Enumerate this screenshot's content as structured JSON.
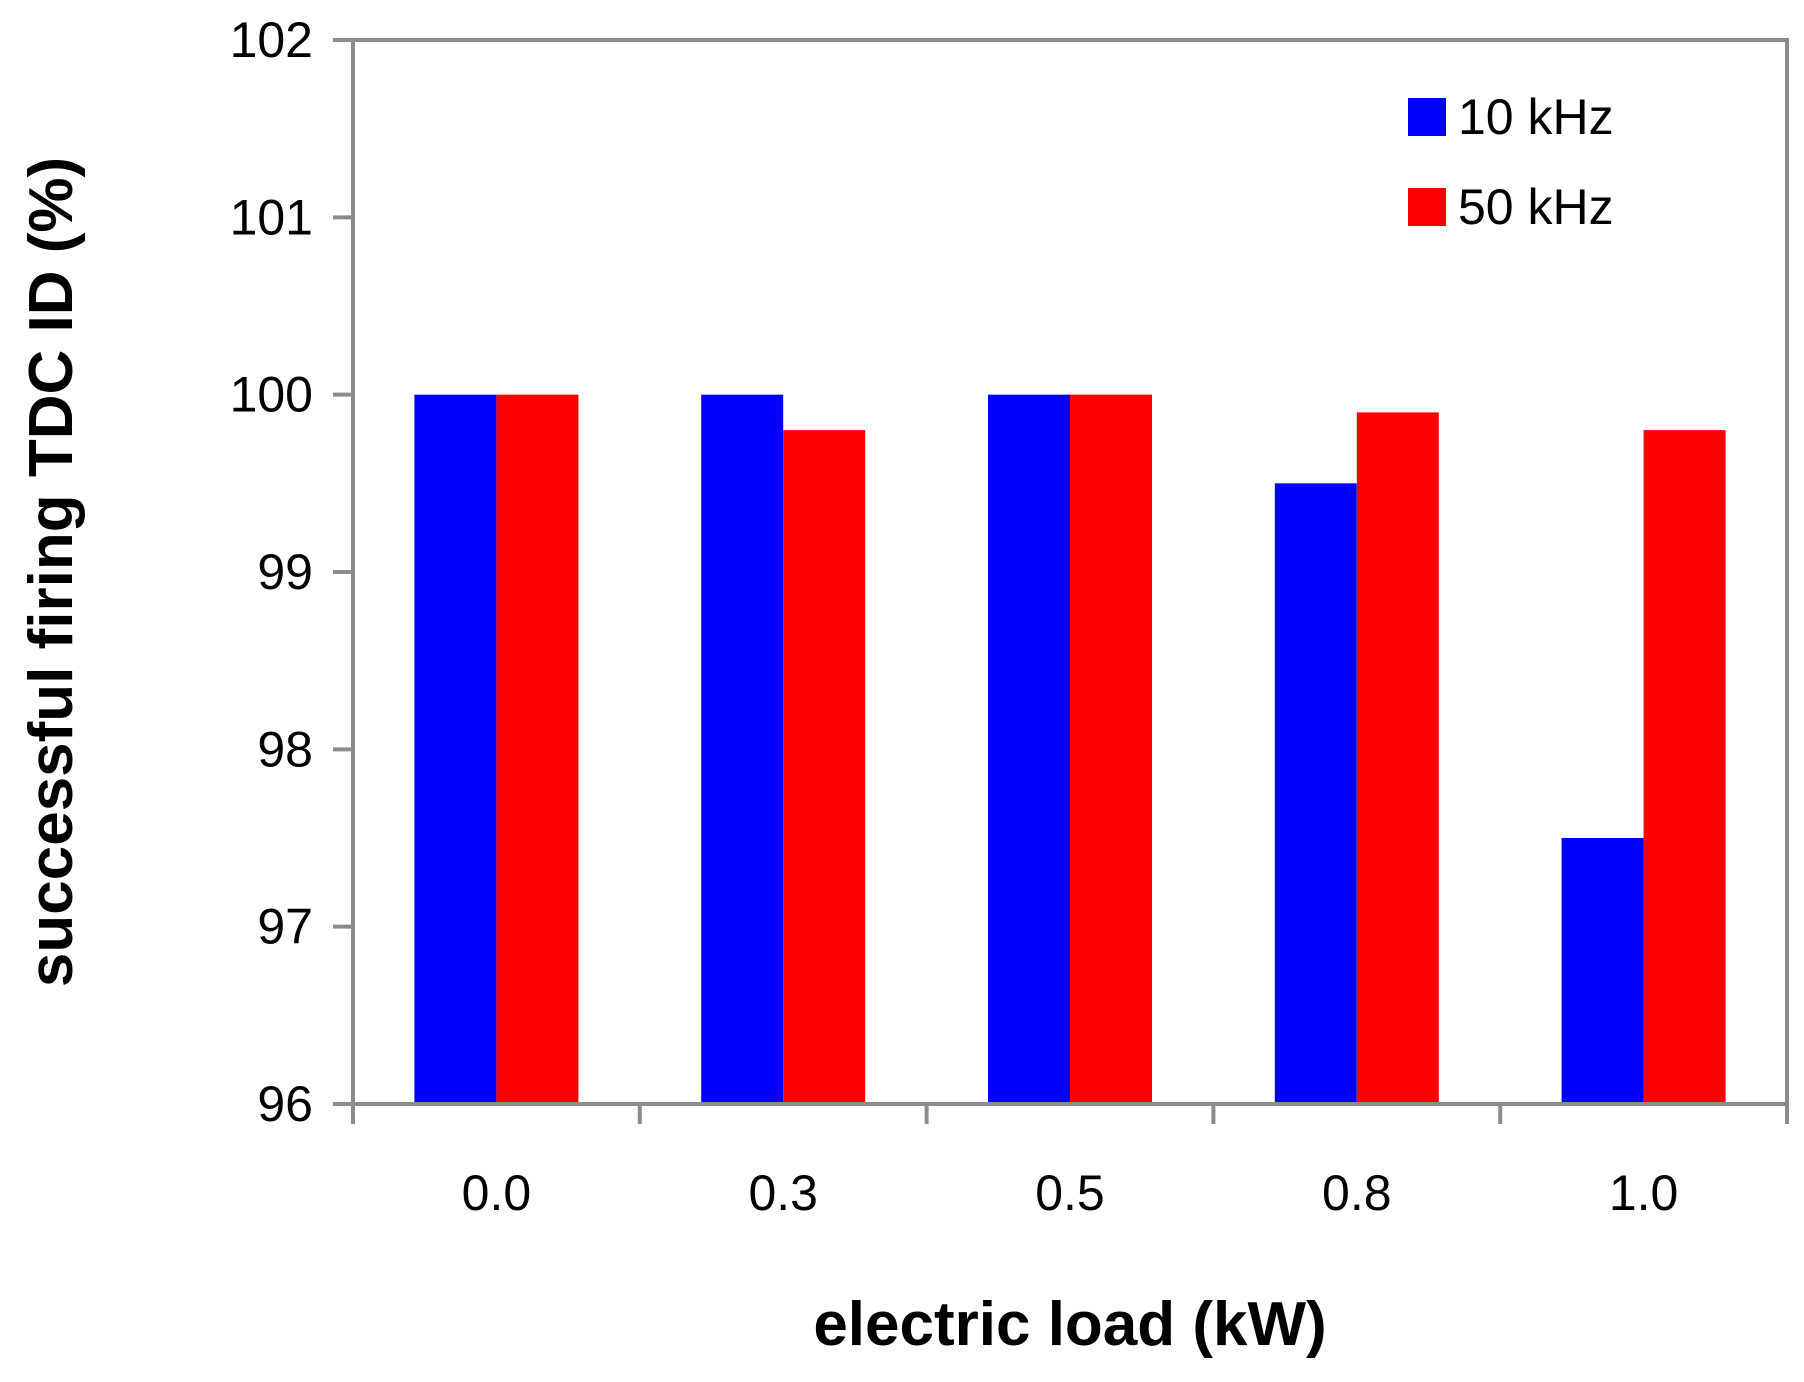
{
  "chart_data": {
    "type": "bar",
    "title": "",
    "xlabel": "electric load (kW)",
    "ylabel": "successful firing TDC ID (%)",
    "categories": [
      "0.0",
      "0.3",
      "0.5",
      "0.8",
      "1.0"
    ],
    "series": [
      {
        "name": "10 kHz",
        "color": "#0000ff",
        "values": [
          100.0,
          100.0,
          100.0,
          99.5,
          97.5
        ]
      },
      {
        "name": "50 kHz",
        "color": "#ff0000",
        "values": [
          100.0,
          99.8,
          100.0,
          99.9,
          99.8
        ]
      }
    ],
    "ylim": [
      96,
      102
    ],
    "yticks": [
      96,
      97,
      98,
      99,
      100,
      101,
      102
    ],
    "grid": false,
    "legend_position": "top-right"
  }
}
